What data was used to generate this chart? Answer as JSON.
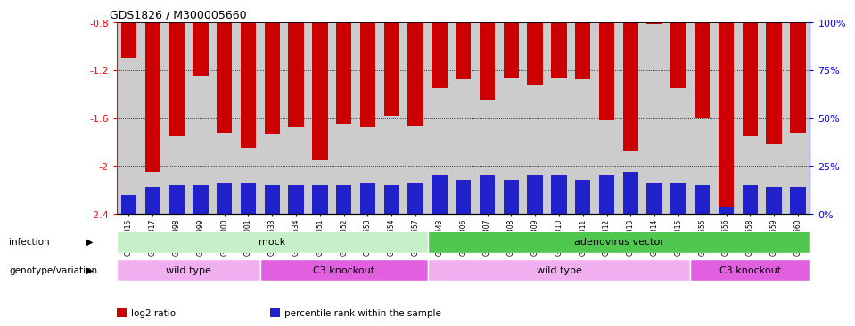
{
  "title": "GDS1826 / M300005660",
  "samples": [
    "GSM87316",
    "GSM87317",
    "GSM93998",
    "GSM93999",
    "GSM94000",
    "GSM94001",
    "GSM93633",
    "GSM93634",
    "GSM93651",
    "GSM93652",
    "GSM93653",
    "GSM93654",
    "GSM93657",
    "GSM86643",
    "GSM87306",
    "GSM87307",
    "GSM87308",
    "GSM87309",
    "GSM87310",
    "GSM87311",
    "GSM87312",
    "GSM87313",
    "GSM87314",
    "GSM87315",
    "GSM93655",
    "GSM93656",
    "GSM93658",
    "GSM93659",
    "GSM93660"
  ],
  "log2_ratio": [
    -1.1,
    -2.05,
    -1.75,
    -1.25,
    -1.72,
    -1.85,
    -1.73,
    -1.68,
    -1.95,
    -1.65,
    -1.68,
    -1.58,
    -1.67,
    -1.35,
    -1.28,
    -1.45,
    -1.27,
    -1.32,
    -1.27,
    -1.28,
    -1.62,
    -1.87,
    -0.82,
    -1.35,
    -1.6,
    -2.35,
    -1.75,
    -1.82,
    -1.72
  ],
  "percentile_rank": [
    10,
    14,
    15,
    15,
    16,
    16,
    15,
    15,
    15,
    15,
    16,
    15,
    16,
    20,
    18,
    20,
    18,
    20,
    20,
    18,
    20,
    22,
    16,
    16,
    15,
    4,
    15,
    14,
    14
  ],
  "ylim_left": [
    -2.4,
    -0.8
  ],
  "ylim_right": [
    0,
    100
  ],
  "yticks_left": [
    -2.4,
    -2.0,
    -1.6,
    -1.2,
    -0.8
  ],
  "ytick_labels_left": [
    "-2.4",
    "-2",
    "-1.6",
    "-1.2",
    "-0.8"
  ],
  "yticks_right": [
    0,
    25,
    50,
    75,
    100
  ],
  "ytick_labels_right": [
    "0%",
    "25%",
    "50%",
    "75%",
    "100%"
  ],
  "infection_groups": [
    {
      "label": "mock",
      "start": 0,
      "end": 13,
      "color": "#c8f0c8"
    },
    {
      "label": "adenovirus vector",
      "start": 13,
      "end": 29,
      "color": "#50c850"
    }
  ],
  "genotype_groups": [
    {
      "label": "wild type",
      "start": 0,
      "end": 6,
      "color": "#f0b0f0"
    },
    {
      "label": "C3 knockout",
      "start": 6,
      "end": 13,
      "color": "#e060e0"
    },
    {
      "label": "wild type",
      "start": 13,
      "end": 24,
      "color": "#f0b0f0"
    },
    {
      "label": "C3 knockout",
      "start": 24,
      "end": 29,
      "color": "#e060e0"
    }
  ],
  "bar_color_red": "#cc0000",
  "bar_color_blue": "#2222cc",
  "legend_items": [
    {
      "color": "#cc0000",
      "label": "log2 ratio"
    },
    {
      "color": "#2222cc",
      "label": "percentile rank within the sample"
    }
  ],
  "bar_width": 0.65,
  "background_color": "#cccccc"
}
